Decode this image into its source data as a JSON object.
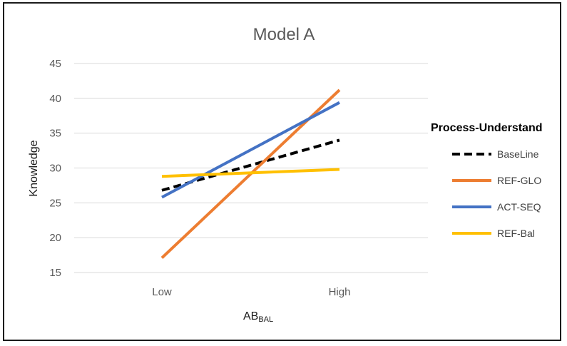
{
  "chart_data": {
    "type": "line",
    "title": "Model A",
    "xlabel": "AB",
    "xlabel_sub": "BAL",
    "ylabel": "Knowledge",
    "categories": [
      "Low",
      "High"
    ],
    "ylim": [
      15,
      45
    ],
    "yticks": [
      15,
      20,
      25,
      30,
      35,
      40,
      45
    ],
    "grid": true,
    "legend_title": "Process-Understand",
    "legend_position": "right",
    "series": [
      {
        "name": "BaseLine",
        "values": [
          26.8,
          34.0
        ],
        "color": "#000000",
        "dash": true
      },
      {
        "name": "REF-GLO",
        "values": [
          17.1,
          41.2
        ],
        "color": "#ED7D31",
        "dash": false
      },
      {
        "name": "ACT-SEQ",
        "values": [
          25.8,
          39.4
        ],
        "color": "#4472C4",
        "dash": false
      },
      {
        "name": "REF-Bal",
        "values": [
          28.8,
          29.8
        ],
        "color": "#FFC000",
        "dash": false
      }
    ]
  }
}
